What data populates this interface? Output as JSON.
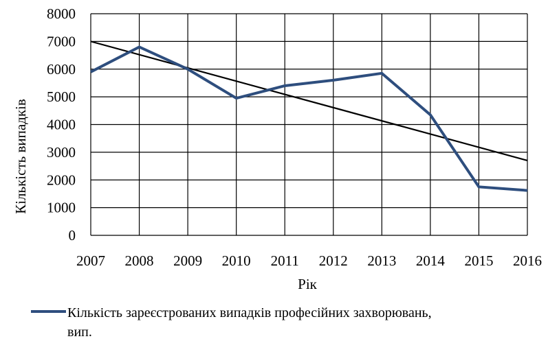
{
  "chart_data": {
    "type": "line",
    "x": [
      2007,
      2008,
      2009,
      2010,
      2011,
      2012,
      2013,
      2014,
      2015,
      2016
    ],
    "series": [
      {
        "name": "Кількість зареєстрованих випадків професійних захворювань, вип.",
        "values": [
          5900,
          6800,
          6000,
          4950,
          5400,
          5600,
          5850,
          4350,
          1750,
          1620
        ],
        "color": "#2e4e7e"
      }
    ],
    "trendline": {
      "start": 7000,
      "end": 2700,
      "color": "#000000"
    },
    "xlabel": "Рік",
    "ylabel": "Кількість випадків",
    "ylim": [
      0,
      8000
    ],
    "yticks": [
      0,
      1000,
      2000,
      3000,
      4000,
      5000,
      6000,
      7000,
      8000
    ],
    "grid": true,
    "legend_position": "bottom",
    "legend": {
      "line1": "Кількість зареєстрованих випадків професійних захворювань,",
      "line2": "вип."
    }
  }
}
